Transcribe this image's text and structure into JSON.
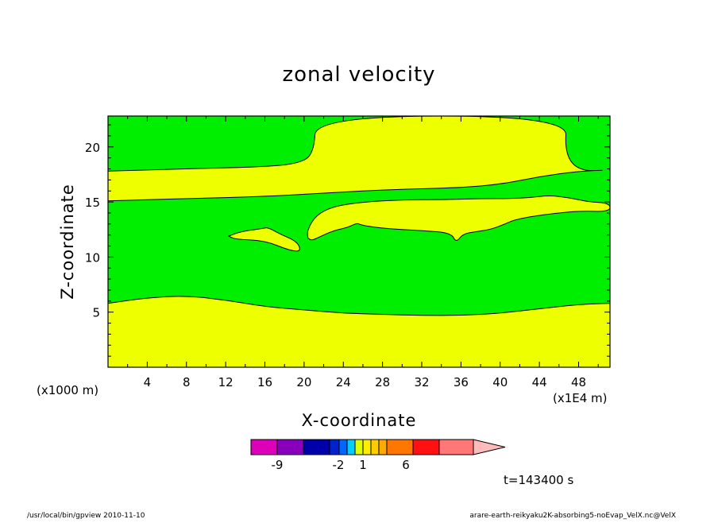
{
  "chart_data": {
    "type": "heatmap",
    "title": "zonal velocity",
    "xlabel": "X-coordinate",
    "ylabel": "Z-coordinate",
    "x_unit_left": "(x1000 m)",
    "x_unit_right": "(x1E4 m)",
    "x_ticks": [
      4,
      8,
      12,
      16,
      20,
      24,
      28,
      32,
      36,
      40,
      44,
      48
    ],
    "y_ticks": [
      5,
      10,
      15,
      20
    ],
    "xlim": [
      0,
      51.2
    ],
    "ylim": [
      0,
      22.8
    ],
    "contour_levels": [
      {
        "range": "< 1",
        "color": "#00ee00"
      },
      {
        "range": ">= 1",
        "color": "#eeff00"
      }
    ],
    "regions": [
      {
        "name": "lower-positive-layer",
        "level": ">= 1",
        "upper_boundary": [
          [
            0,
            5.8
          ],
          [
            4,
            6.3
          ],
          [
            8,
            6.5
          ],
          [
            12,
            6.1
          ],
          [
            16,
            5.5
          ],
          [
            20,
            5.2
          ],
          [
            24,
            4.9
          ],
          [
            28,
            4.8
          ],
          [
            32,
            4.7
          ],
          [
            36,
            4.7
          ],
          [
            40,
            4.9
          ],
          [
            44,
            5.3
          ],
          [
            48,
            5.7
          ],
          [
            51.2,
            5.8
          ]
        ]
      },
      {
        "name": "middle-positive-layer",
        "level": ">= 1",
        "lower_boundary": [
          [
            0,
            15.1
          ],
          [
            8,
            15.3
          ],
          [
            16,
            15.5
          ],
          [
            20,
            15.7
          ],
          [
            24,
            15.9
          ],
          [
            28,
            16.1
          ],
          [
            32,
            16.2
          ],
          [
            36,
            16.3
          ],
          [
            40,
            16.6
          ],
          [
            44,
            17.3
          ],
          [
            48,
            17.8
          ],
          [
            51.2,
            17.9
          ]
        ],
        "upper_boundary": [
          [
            0,
            17.8
          ],
          [
            8,
            18.0
          ],
          [
            16,
            18.2
          ],
          [
            19.5,
            18.5
          ],
          [
            21,
            19.4
          ],
          [
            21.2,
            22.8
          ],
          [
            46.8,
            22.8
          ],
          [
            46.6,
            21.0
          ],
          [
            45.5,
            19.8
          ],
          [
            44,
            18.6
          ],
          [
            40,
            17.6
          ],
          [
            36,
            17.4
          ],
          [
            32,
            17.4
          ],
          [
            28,
            17.2
          ],
          [
            24,
            16.9
          ],
          [
            20,
            16.0
          ],
          [
            16,
            15.6
          ],
          [
            8,
            15.3
          ],
          [
            0,
            15.1
          ]
        ]
      },
      {
        "name": "cell-a",
        "level": ">= 1",
        "outline": [
          [
            12.3,
            11.9
          ],
          [
            13.5,
            12.3
          ],
          [
            15.8,
            12.6
          ],
          [
            16.3,
            12.7
          ],
          [
            17.5,
            12.1
          ],
          [
            19.3,
            11.4
          ],
          [
            19.7,
            10.5
          ],
          [
            18.5,
            10.6
          ],
          [
            16,
            11.5
          ],
          [
            13,
            11.6
          ],
          [
            12.3,
            11.9
          ]
        ]
      },
      {
        "name": "cell-b",
        "level": ">= 1",
        "outline": [
          [
            20.4,
            11.7
          ],
          [
            20.3,
            12.4
          ],
          [
            21.2,
            13.8
          ],
          [
            23,
            14.6
          ],
          [
            26,
            15.0
          ],
          [
            30,
            15.2
          ],
          [
            34,
            15.2
          ],
          [
            38,
            15.3
          ],
          [
            41,
            15.3
          ],
          [
            43,
            15.4
          ],
          [
            45,
            15.6
          ],
          [
            47,
            15.4
          ],
          [
            49,
            15.0
          ],
          [
            51.2,
            14.9
          ],
          [
            51.2,
            14.1
          ],
          [
            48,
            14.2
          ],
          [
            44,
            13.8
          ],
          [
            41.5,
            13.4
          ],
          [
            40.5,
            13.0
          ],
          [
            39,
            12.5
          ],
          [
            37.5,
            12.3
          ],
          [
            36.2,
            12.1
          ],
          [
            35.5,
            11.3
          ],
          [
            35.0,
            12.2
          ],
          [
            32,
            12.4
          ],
          [
            28,
            12.6
          ],
          [
            25.8,
            12.9
          ],
          [
            25.4,
            13.1
          ],
          [
            24.5,
            12.7
          ],
          [
            23,
            12.4
          ],
          [
            21.5,
            11.8
          ],
          [
            20.8,
            11.5
          ],
          [
            20.4,
            11.7
          ]
        ]
      }
    ],
    "colorbar": {
      "labels": [
        {
          "value": -9,
          "text": "-9"
        },
        {
          "value": -2,
          "text": "-2"
        },
        {
          "value": 1,
          "text": "1"
        },
        {
          "value": 6,
          "text": "6"
        }
      ],
      "segments": [
        {
          "color": "#dd00bb"
        },
        {
          "color": "#8800bb"
        },
        {
          "color": "#0000aa"
        },
        {
          "color": "#0022cc"
        },
        {
          "color": "#0066ff"
        },
        {
          "color": "#00ccff"
        },
        {
          "color": "#ddff00"
        },
        {
          "color": "#ffee00"
        },
        {
          "color": "#ffcc00"
        },
        {
          "color": "#ffaa00"
        },
        {
          "color": "#ff7700"
        },
        {
          "color": "#ff1111"
        },
        {
          "color": "#ff7777"
        }
      ],
      "arrow_color": "#ffbbbb"
    },
    "time_label": "t=143400 s"
  },
  "footer": {
    "left": "/usr/local/bin/gpview  2010-11-10",
    "right": "arare-earth-reikyaku2K-absorbing5-noEvap_VelX.nc@VelX"
  }
}
